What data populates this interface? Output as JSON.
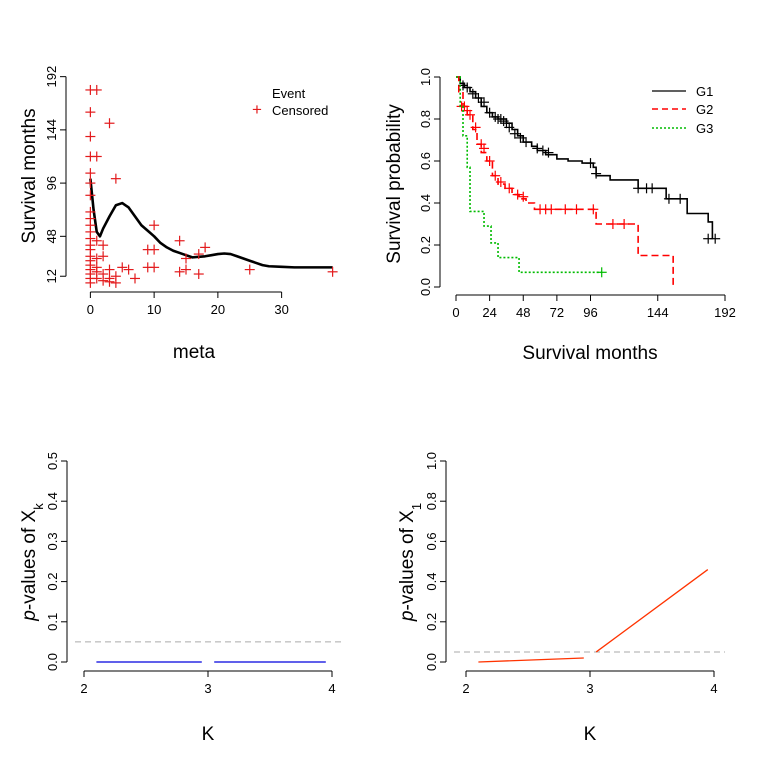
{
  "panels": [
    {
      "id": "a",
      "chart_data": {
        "type": "scatter",
        "xlabel": "meta",
        "ylabel": "Survival months",
        "xlim": [
          -1,
          39
        ],
        "ylim": [
          5,
          198
        ],
        "xticks": [
          0,
          10,
          20,
          30
        ],
        "yticks": [
          12,
          48,
          96,
          144,
          192
        ],
        "legend": {
          "position": "top-right",
          "entries": [
            "Event",
            "Censored"
          ]
        },
        "censored_points": [
          [
            0,
            180
          ],
          [
            0,
            160
          ],
          [
            0,
            138
          ],
          [
            0,
            120
          ],
          [
            0,
            105
          ],
          [
            0,
            96
          ],
          [
            0,
            85
          ],
          [
            0,
            70
          ],
          [
            0,
            64
          ],
          [
            0,
            58
          ],
          [
            0,
            52
          ],
          [
            0,
            46
          ],
          [
            0,
            40
          ],
          [
            0,
            36
          ],
          [
            0,
            30
          ],
          [
            0,
            26
          ],
          [
            0,
            22
          ],
          [
            0,
            18
          ],
          [
            0,
            14
          ],
          [
            0,
            10
          ],
          [
            0,
            6
          ],
          [
            1,
            180
          ],
          [
            1,
            120
          ],
          [
            1,
            44
          ],
          [
            1,
            28
          ],
          [
            1,
            20
          ],
          [
            1,
            16
          ],
          [
            1,
            10
          ],
          [
            2,
            40
          ],
          [
            2,
            30
          ],
          [
            2,
            14
          ],
          [
            2,
            8
          ],
          [
            3,
            150
          ],
          [
            3,
            18
          ],
          [
            3,
            10
          ],
          [
            3,
            7
          ],
          [
            4,
            100
          ],
          [
            4,
            12
          ],
          [
            4,
            6
          ],
          [
            5,
            20
          ],
          [
            6,
            18
          ],
          [
            7,
            10
          ],
          [
            9,
            36
          ],
          [
            9,
            20
          ],
          [
            10,
            58
          ],
          [
            10,
            36
          ],
          [
            10,
            20
          ],
          [
            14,
            44
          ],
          [
            14,
            16
          ],
          [
            15,
            18
          ],
          [
            15,
            28
          ],
          [
            17,
            14
          ],
          [
            17,
            32
          ],
          [
            18,
            38
          ],
          [
            25,
            18
          ],
          [
            38,
            16
          ]
        ],
        "smooth_curve": {
          "x": [
            0,
            0.5,
            1,
            1.5,
            2,
            3,
            4,
            5,
            6,
            7,
            8,
            9,
            10,
            11,
            12,
            13,
            14,
            15,
            16,
            17,
            18,
            19,
            20,
            21,
            22,
            23,
            24,
            25,
            26,
            27,
            28,
            30,
            32,
            34,
            36,
            38
          ],
          "y": [
            100,
            72,
            52,
            48,
            55,
            66,
            76,
            78,
            74,
            66,
            58,
            53,
            48,
            42,
            38,
            35,
            33,
            31,
            29,
            29.5,
            30,
            31,
            32,
            32.5,
            32,
            30,
            28,
            26,
            24,
            22,
            21,
            20.5,
            20,
            20,
            20,
            20
          ]
        }
      }
    },
    {
      "id": "b",
      "chart_data": {
        "type": "line",
        "xlabel": "Survival months",
        "ylabel": "Survival probability",
        "xlim": [
          0,
          192
        ],
        "ylim": [
          0,
          1
        ],
        "xticks": [
          0,
          24,
          48,
          72,
          96,
          144,
          192
        ],
        "yticks": [
          0.0,
          0.2,
          0.4,
          0.6,
          0.8,
          1.0
        ],
        "legend": {
          "position": "top-right",
          "entries": [
            "G1",
            "G2",
            "G3"
          ]
        },
        "series": [
          {
            "name": "G1",
            "color": "#000000",
            "dash": "solid",
            "x": [
              0,
              3,
              6,
              10,
              14,
              18,
              22,
              26,
              30,
              36,
              40,
              44,
              48,
              54,
              58,
              64,
              72,
              80,
              90,
              98,
              100,
              110,
              130,
              150,
              165,
              180,
              183
            ],
            "y": [
              1.0,
              0.97,
              0.95,
              0.93,
              0.9,
              0.86,
              0.83,
              0.81,
              0.8,
              0.78,
              0.75,
              0.72,
              0.69,
              0.67,
              0.65,
              0.63,
              0.61,
              0.6,
              0.59,
              0.57,
              0.53,
              0.51,
              0.47,
              0.42,
              0.35,
              0.31,
              0.23
            ],
            "censor_x": [
              5,
              8,
              12,
              16,
              20,
              24,
              28,
              30,
              32,
              34,
              36,
              38,
              42,
              46,
              50,
              58,
              62,
              66,
              96,
              100,
              130,
              136,
              140,
              152,
              160,
              180,
              185
            ],
            "censor_y": [
              0.96,
              0.95,
              0.92,
              0.9,
              0.88,
              0.83,
              0.81,
              0.8,
              0.8,
              0.79,
              0.78,
              0.76,
              0.73,
              0.71,
              0.69,
              0.66,
              0.65,
              0.64,
              0.59,
              0.54,
              0.47,
              0.47,
              0.47,
              0.42,
              0.42,
              0.23,
              0.23
            ]
          },
          {
            "name": "G2",
            "color": "#ff0000",
            "dash": "dashed",
            "x": [
              0,
              2,
              5,
              8,
              12,
              15,
              18,
              22,
              26,
              30,
              35,
              40,
              45,
              50,
              56,
              62,
              70,
              80,
              90,
              100,
              110,
              120,
              130,
              140,
              155
            ],
            "y": [
              1.0,
              0.93,
              0.86,
              0.82,
              0.75,
              0.68,
              0.64,
              0.6,
              0.53,
              0.49,
              0.47,
              0.44,
              0.42,
              0.4,
              0.37,
              0.37,
              0.37,
              0.37,
              0.37,
              0.3,
              0.3,
              0.3,
              0.15,
              0.15,
              0.0
            ],
            "censor_x": [
              4,
              6,
              8,
              10,
              14,
              18,
              20,
              24,
              28,
              32,
              38,
              44,
              48,
              60,
              64,
              68,
              78,
              86,
              98,
              112,
              120
            ],
            "censor_y": [
              0.86,
              0.86,
              0.84,
              0.82,
              0.76,
              0.68,
              0.66,
              0.6,
              0.53,
              0.5,
              0.47,
              0.44,
              0.43,
              0.37,
              0.37,
              0.37,
              0.37,
              0.37,
              0.37,
              0.3,
              0.3
            ]
          },
          {
            "name": "G3",
            "color": "#00bb00",
            "dash": "dotted",
            "x": [
              0,
              3,
              5,
              8,
              10,
              15,
              20,
              25,
              30,
              38,
              45,
              55,
              70,
              90,
              104
            ],
            "y": [
              1.0,
              0.86,
              0.72,
              0.57,
              0.36,
              0.36,
              0.29,
              0.21,
              0.14,
              0.14,
              0.07,
              0.07,
              0.07,
              0.07,
              0.07
            ],
            "censor_x": [
              104
            ],
            "censor_y": [
              0.07
            ]
          }
        ]
      }
    },
    {
      "id": "c",
      "chart_data": {
        "type": "line",
        "xlabel": "K",
        "ylabel_prefix": "p",
        "ylabel_mid": "-values of X",
        "ylabel_sub": "k",
        "xlim": [
          2,
          4
        ],
        "ylim": [
          0,
          0.5
        ],
        "xticks": [
          2,
          3,
          4
        ],
        "yticks": [
          0.0,
          0.1,
          0.2,
          0.3,
          0.4,
          0.5
        ],
        "threshold": 0.05,
        "series": [
          {
            "color": "#0000dd",
            "segments": [
              [
                [
                  2.1,
                  0.0
                ],
                [
                  2.95,
                  0.0
                ]
              ],
              [
                [
                  3.05,
                  0.0
                ],
                [
                  3.95,
                  0.0
                ]
              ]
            ]
          }
        ]
      }
    },
    {
      "id": "d",
      "chart_data": {
        "type": "line",
        "xlabel": "K",
        "ylabel_prefix": "p",
        "ylabel_mid": "-values of X",
        "ylabel_sub": "1",
        "xlim": [
          2,
          4
        ],
        "ylim": [
          0,
          1
        ],
        "xticks": [
          2,
          3,
          4
        ],
        "yticks": [
          0.0,
          0.2,
          0.4,
          0.6,
          0.8,
          1.0
        ],
        "threshold": 0.05,
        "series": [
          {
            "color": "#ff3300",
            "segments": [
              [
                [
                  2.1,
                  0.0
                ],
                [
                  2.95,
                  0.02
                ]
              ],
              [
                [
                  3.05,
                  0.05
                ],
                [
                  3.95,
                  0.46
                ]
              ]
            ]
          }
        ]
      }
    }
  ]
}
